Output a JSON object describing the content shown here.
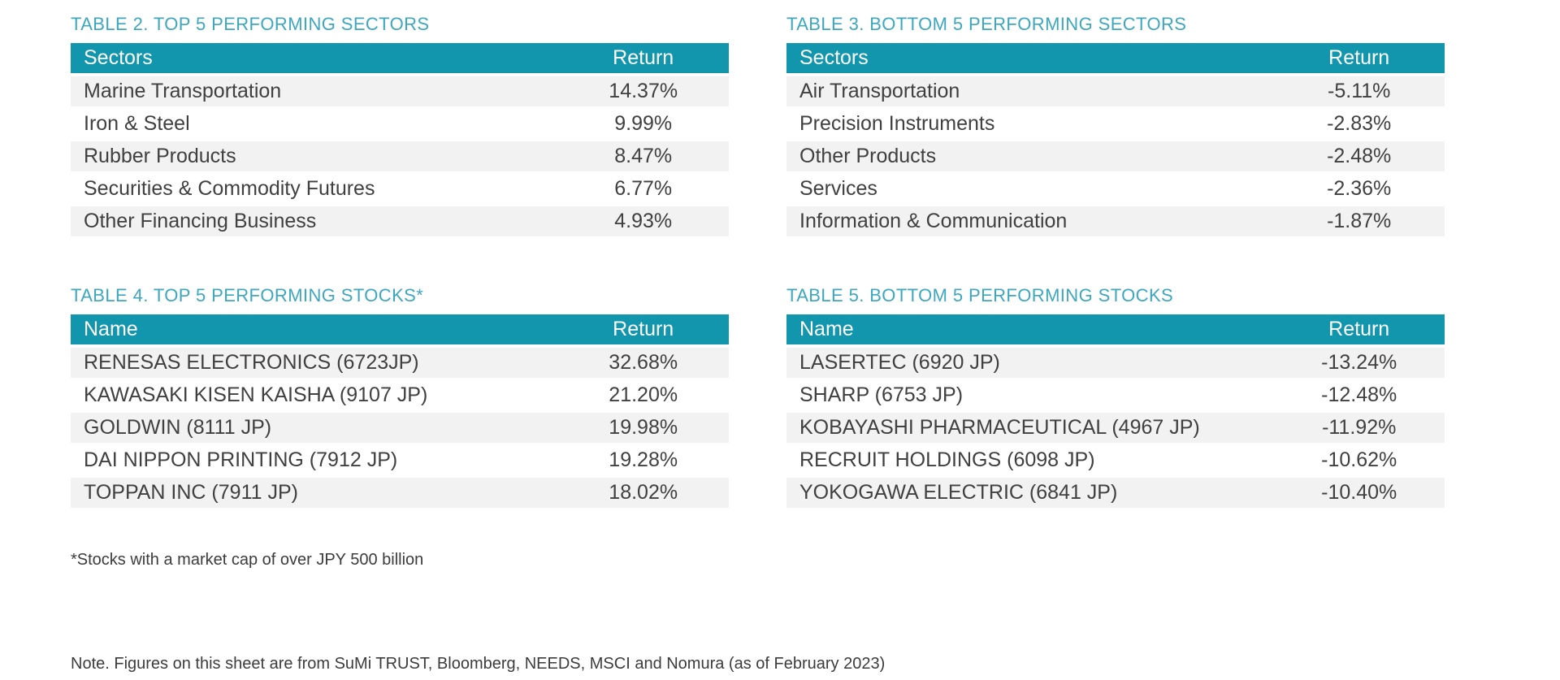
{
  "colors": {
    "header_bg": "#1296AD",
    "title_color": "#3CA7BE",
    "stripe": "#F2F2F2",
    "body_text": "#404040",
    "note_text": "#3C3C3C"
  },
  "tables": [
    {
      "title": "TABLE 2. TOP 5 PERFORMING SECTORS",
      "col1": "Sectors",
      "col2": "Return",
      "rows": [
        {
          "name": "Marine Transportation",
          "return": "14.37%"
        },
        {
          "name": "Iron & Steel",
          "return": "9.99%"
        },
        {
          "name": "Rubber Products",
          "return": "8.47%"
        },
        {
          "name": "Securities & Commodity Futures",
          "return": "6.77%"
        },
        {
          "name": "Other Financing Business",
          "return": "4.93%"
        }
      ]
    },
    {
      "title": "TABLE 3. BOTTOM 5 PERFORMING SECTORS",
      "col1": "Sectors",
      "col2": "Return",
      "rows": [
        {
          "name": "Air Transportation",
          "return": "-5.11%"
        },
        {
          "name": "Precision Instruments",
          "return": "-2.83%"
        },
        {
          "name": "Other Products",
          "return": "-2.48%"
        },
        {
          "name": "Services",
          "return": "-2.36%"
        },
        {
          "name": "Information & Communication",
          "return": "-1.87%"
        }
      ]
    },
    {
      "title": "TABLE 4. TOP 5 PERFORMING STOCKS*",
      "col1": "Name",
      "col2": "Return",
      "rows": [
        {
          "name": "RENESAS ELECTRONICS (6723JP)",
          "return": "32.68%"
        },
        {
          "name": "KAWASAKI KISEN KAISHA (9107 JP)",
          "return": "21.20%"
        },
        {
          "name": "GOLDWIN (8111 JP)",
          "return": "19.98%"
        },
        {
          "name": "DAI NIPPON PRINTING (7912 JP)",
          "return": "19.28%"
        },
        {
          "name": "TOPPAN INC (7911 JP)",
          "return": "18.02%"
        }
      ]
    },
    {
      "title": "TABLE 5. BOTTOM 5 PERFORMING STOCKS",
      "col1": "Name",
      "col2": "Return",
      "rows": [
        {
          "name": "LASERTEC (6920 JP)",
          "return": "-13.24%"
        },
        {
          "name": "SHARP (6753 JP)",
          "return": "-12.48%"
        },
        {
          "name": "KOBAYASHI PHARMACEUTICAL (4967 JP)",
          "return": "-11.92%"
        },
        {
          "name": "RECRUIT HOLDINGS (6098 JP)",
          "return": "-10.62%"
        },
        {
          "name": "YOKOGAWA ELECTRIC (6841 JP)",
          "return": "-10.40%"
        }
      ]
    }
  ],
  "footnote": "*Stocks with a market cap of over JPY 500 billion",
  "source_note": "Note. Figures on this sheet are from SuMi TRUST, Bloomberg, NEEDS, MSCI and Nomura (as of February 2023)"
}
